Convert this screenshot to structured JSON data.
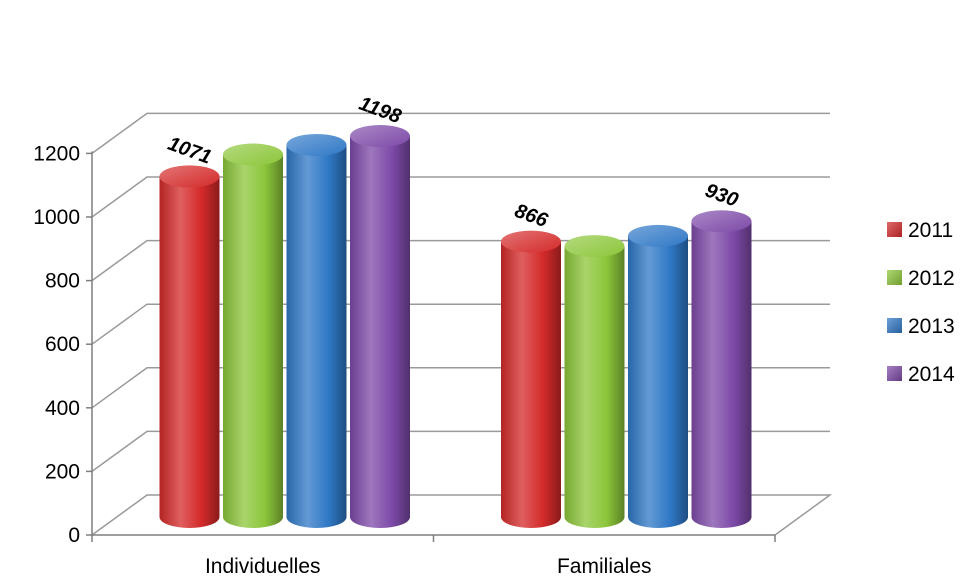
{
  "chart_data": {
    "type": "bar",
    "style": "3d-cylinder",
    "categories": [
      "Individuelles",
      "Familiales"
    ],
    "series": [
      {
        "name": "2011",
        "color": "#d42a2a",
        "values": [
          1071,
          866
        ]
      },
      {
        "name": "2012",
        "color": "#8cc63a",
        "values": [
          1140,
          852
        ]
      },
      {
        "name": "2013",
        "color": "#2f78c6",
        "values": [
          1170,
          884
        ]
      },
      {
        "name": "2014",
        "color": "#7d4aa8",
        "values": [
          1198,
          930
        ]
      }
    ],
    "data_labels": [
      {
        "series": 0,
        "category": 0,
        "text": "1071"
      },
      {
        "series": 3,
        "category": 0,
        "text": "1198"
      },
      {
        "series": 0,
        "category": 1,
        "text": "866"
      },
      {
        "series": 3,
        "category": 1,
        "text": "930"
      }
    ],
    "yticks": [
      "0",
      "200",
      "400",
      "600",
      "800",
      "1000",
      "1200"
    ],
    "ylim": [
      0,
      1200
    ],
    "title": "",
    "xlabel": "",
    "ylabel": "",
    "grid": true,
    "legend_position": "right"
  }
}
